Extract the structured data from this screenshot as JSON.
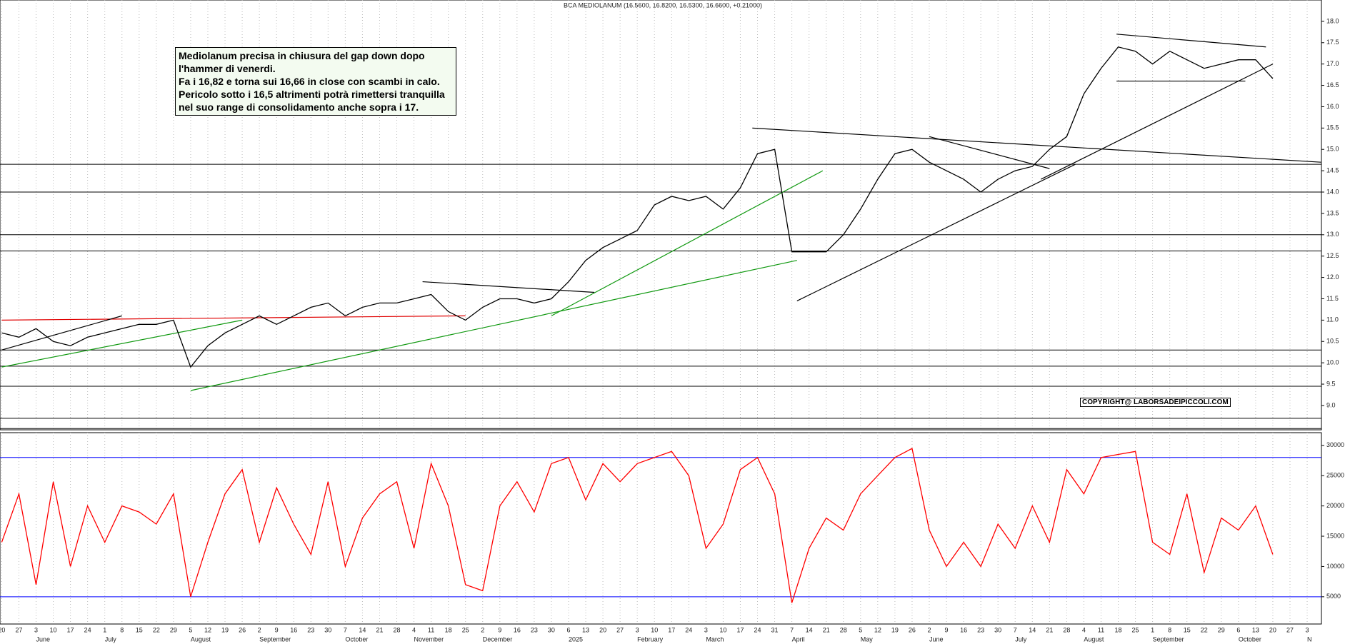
{
  "chart_data": [
    {
      "type": "line",
      "title": "BCA MEDIOLANUM (16.5600, 16.8200, 16.5300, 16.6600, +0.21000)",
      "annotation": [
        "Mediolanum  precisa  in chiusura del gap down dopo",
        "l'hammer di venerdi.",
        "Fa i 16,82 e torna sui 16,66 in close con scambi in calo.",
        "Pericolo sotto i 16,5 altrimenti potrà rimettersi tranquilla",
        "nel suo range di consolidamento anche sopra i 17."
      ],
      "copyright": "COPYRIGHT@ LABORSADEIPICCOLI.COM",
      "categories": [
        "20",
        "27",
        "3",
        "10",
        "17",
        "24",
        "1",
        "8",
        "15",
        "22",
        "29",
        "5",
        "12",
        "19",
        "26",
        "2",
        "9",
        "16",
        "23",
        "30",
        "7",
        "14",
        "21",
        "28",
        "4",
        "11",
        "18",
        "25",
        "2",
        "9",
        "16",
        "23",
        "30",
        "6",
        "13",
        "20",
        "27",
        "3",
        "10",
        "17",
        "24",
        "3",
        "10",
        "17",
        "24",
        "31",
        "7",
        "14",
        "21",
        "28",
        "5",
        "12",
        "19",
        "26",
        "2",
        "9",
        "16",
        "23",
        "30",
        "7",
        "14",
        "21",
        "28",
        "4",
        "11",
        "18",
        "25",
        "1",
        "8",
        "15",
        "22",
        "29",
        "6",
        "13",
        "20",
        "27",
        "3"
      ],
      "month_labels": [
        null,
        null,
        "June",
        null,
        null,
        null,
        "July",
        null,
        null,
        null,
        null,
        "August",
        null,
        null,
        null,
        "September",
        null,
        null,
        null,
        null,
        "October",
        null,
        null,
        null,
        "November",
        null,
        null,
        null,
        "December",
        null,
        null,
        null,
        null,
        "2025",
        null,
        null,
        null,
        "February",
        null,
        null,
        null,
        "March",
        null,
        null,
        null,
        null,
        "April",
        null,
        null,
        null,
        "May",
        null,
        null,
        null,
        "June",
        null,
        null,
        null,
        null,
        "July",
        null,
        null,
        null,
        "August",
        null,
        null,
        null,
        "September",
        null,
        null,
        null,
        null,
        "October",
        null,
        null,
        null,
        "N"
      ],
      "series": [
        {
          "name": "BCA MEDIOLANUM",
          "color": "#000000",
          "values": [
            10.7,
            10.6,
            10.8,
            10.5,
            10.4,
            10.6,
            10.7,
            10.8,
            10.9,
            10.9,
            11.0,
            9.9,
            10.4,
            10.7,
            10.9,
            11.1,
            10.9,
            11.1,
            11.3,
            11.4,
            11.1,
            11.3,
            11.4,
            11.4,
            11.5,
            11.6,
            11.2,
            11.0,
            11.3,
            11.5,
            11.5,
            11.4,
            11.5,
            11.9,
            12.4,
            12.7,
            12.9,
            13.1,
            13.7,
            13.9,
            13.8,
            13.9,
            13.6,
            14.1,
            14.9,
            15.0,
            12.6,
            12.6,
            12.6,
            13.0,
            13.6,
            14.3,
            14.9,
            15.0,
            14.7,
            14.5,
            14.3,
            14.0,
            14.3,
            14.5,
            14.6,
            15.0,
            15.3,
            16.3,
            16.9,
            17.4,
            17.3,
            17.0,
            17.3,
            17.1,
            16.9,
            17.0,
            17.1,
            17.1,
            16.66,
            null,
            null
          ]
        }
      ],
      "hlines": {
        "color": "#000000",
        "values": [
          14.65,
          14.0,
          13.0,
          12.62,
          10.3,
          9.92,
          9.45,
          8.7,
          8.46
        ]
      },
      "trendlines": [
        {
          "color": "#e00000",
          "x": [
            0,
            27
          ],
          "y": [
            11.0,
            11.1
          ]
        },
        {
          "color": "#119911",
          "x": [
            11,
            46.3
          ],
          "y": [
            9.35,
            12.4
          ]
        },
        {
          "color": "#119911",
          "x": [
            32,
            47.8
          ],
          "y": [
            11.1,
            14.5
          ]
        },
        {
          "color": "#119911",
          "x": [
            0,
            14
          ],
          "y": [
            9.9,
            11.0
          ]
        },
        {
          "color": "#000000",
          "x": [
            46.3,
            62.5
          ],
          "y": [
            11.45,
            14.65
          ]
        },
        {
          "color": "#000000",
          "x": [
            43.7,
            76.8
          ],
          "y": [
            15.5,
            14.7
          ]
        },
        {
          "color": "#000000",
          "x": [
            64.9,
            73.6
          ],
          "y": [
            17.7,
            17.4
          ]
        },
        {
          "color": "#000000",
          "x": [
            54,
            61
          ],
          "y": [
            15.3,
            14.55
          ]
        },
        {
          "color": "#000000",
          "x": [
            64.9,
            72.4
          ],
          "y": [
            16.6,
            16.6
          ]
        },
        {
          "color": "#000000",
          "x": [
            60.5,
            74
          ],
          "y": [
            14.3,
            17.0
          ]
        },
        {
          "color": "#000000",
          "x": [
            24.5,
            34.5
          ],
          "y": [
            11.9,
            11.65
          ]
        },
        {
          "color": "#000000",
          "x": [
            0,
            7
          ],
          "y": [
            10.3,
            11.1
          ]
        }
      ],
      "ylim": [
        8.43,
        18.5
      ],
      "yticks": [
        {
          "value": 9,
          "label": "9.0"
        },
        {
          "value": 9.5,
          "label": "9.5"
        },
        {
          "value": 10,
          "label": "10.0"
        },
        {
          "value": 10.5,
          "label": "10.5"
        },
        {
          "value": 11,
          "label": "11.0"
        },
        {
          "value": 11.5,
          "label": "11.5"
        },
        {
          "value": 12,
          "label": "12.0"
        },
        {
          "value": 12.5,
          "label": "12.5"
        },
        {
          "value": 13,
          "label": "13.0"
        },
        {
          "value": 13.5,
          "label": "13.5"
        },
        {
          "value": 14,
          "label": "14.0"
        },
        {
          "value": 14.5,
          "label": "14.5"
        },
        {
          "value": 15,
          "label": "15.0"
        },
        {
          "value": 15.5,
          "label": "15.5"
        },
        {
          "value": 16,
          "label": "16.0"
        },
        {
          "value": 16.5,
          "label": "16.5"
        },
        {
          "value": 17,
          "label": "17.0"
        },
        {
          "value": 17.5,
          "label": "17.5"
        },
        {
          "value": 18,
          "label": "18.0"
        }
      ],
      "grid": true
    },
    {
      "type": "line",
      "series": [
        {
          "color": "#ff0000",
          "values": [
            14000,
            22000,
            7000,
            24000,
            10000,
            20000,
            14000,
            20000,
            19000,
            17000,
            22000,
            5000,
            14000,
            22000,
            26000,
            14000,
            23000,
            17000,
            12000,
            24000,
            10000,
            18000,
            22000,
            24000,
            13000,
            27000,
            20000,
            7000,
            6000,
            20000,
            24000,
            19000,
            27000,
            28000,
            21000,
            27000,
            24000,
            27000,
            28000,
            29000,
            25000,
            13000,
            17000,
            26000,
            28000,
            22000,
            4000,
            13000,
            18000,
            16000,
            22000,
            25000,
            28000,
            29500,
            16000,
            10000,
            14000,
            10000,
            17000,
            13000,
            20000,
            14000,
            26000,
            22000,
            28000,
            28500,
            29000,
            14000,
            12000,
            22000,
            9000,
            18000,
            16000,
            20000,
            12000,
            null,
            null
          ]
        }
      ],
      "hlines": {
        "color": "#0000ff",
        "values": [
          28000,
          5000
        ]
      },
      "ylim": [
        500,
        32100
      ],
      "yticks": [
        5000,
        10000,
        15000,
        20000,
        25000,
        30000
      ]
    }
  ]
}
